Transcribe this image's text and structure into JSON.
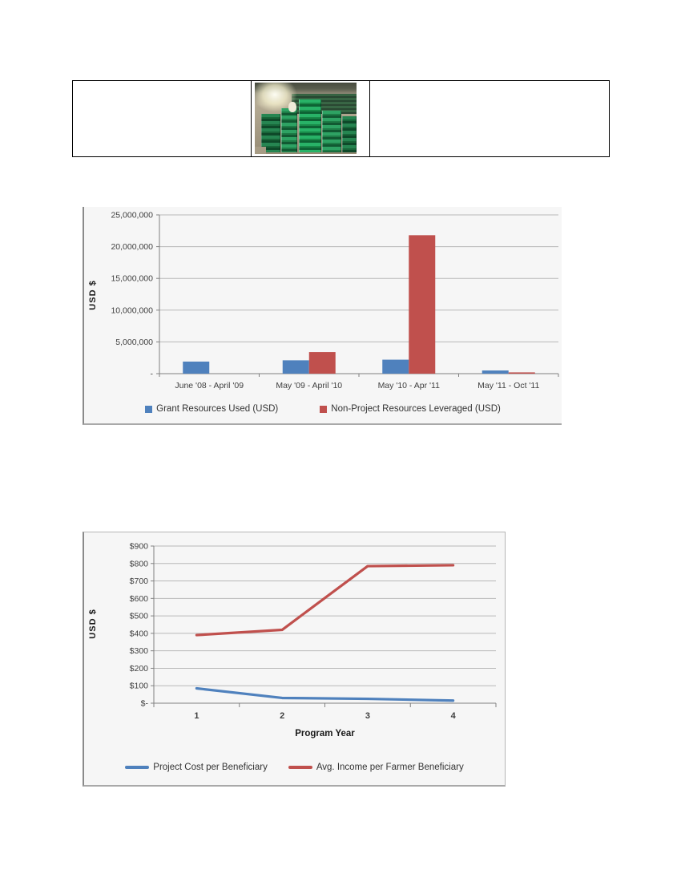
{
  "table": {
    "rows": 1,
    "columns": 3,
    "cell_texts": [
      "",
      "",
      ""
    ],
    "photo": {
      "name": "stacked-green-crates-warehouse-photo",
      "description_colors": {
        "crate_green": "#1d7c46",
        "wall": "#b5ab94",
        "ceiling": "#474b3e"
      }
    },
    "border_color": "#000000"
  },
  "chart_data": [
    {
      "type": "bar",
      "title": "",
      "xlabel": "",
      "ylabel": "USD $",
      "categories": [
        "June '08 - April '09",
        "May '09 - April '10",
        "May '10 - Apr '11",
        "May '11 - Oct '11"
      ],
      "series": [
        {
          "name": "Grant Resources Used (USD)",
          "color": "#4F81BD",
          "values": [
            1900000,
            2100000,
            2200000,
            500000
          ]
        },
        {
          "name": "Non-Project Resources Leveraged (USD)",
          "color": "#C0504D",
          "values": [
            0,
            3400000,
            21800000,
            200000
          ]
        }
      ],
      "ylim": [
        0,
        25000000
      ],
      "yticks": [
        "25,000,000",
        "20,000,000",
        "15,000,000",
        "10,000,000",
        "5,000,000",
        "-"
      ],
      "grid": true,
      "legend_position": "bottom",
      "gridline_color": "#b8b8b8",
      "axis_color": "#808080"
    },
    {
      "type": "line",
      "title": "",
      "xlabel": "Program Year",
      "ylabel": "USD $",
      "x": [
        1,
        2,
        3,
        4
      ],
      "series": [
        {
          "name": "Project Cost per Beneficiary",
          "color": "#4F81BD",
          "values": [
            85,
            30,
            25,
            15
          ]
        },
        {
          "name": "Avg. Income per Farmer Beneficiary",
          "color": "#C0504D",
          "values": [
            390,
            420,
            785,
            790
          ]
        }
      ],
      "ylim": [
        0,
        900
      ],
      "yticks": [
        "$900",
        "$800",
        "$700",
        "$600",
        "$500",
        "$400",
        "$300",
        "$200",
        "$100",
        "$-"
      ],
      "grid": true,
      "legend_position": "bottom",
      "gridline_color": "#b8b8b8",
      "axis_color": "#808080"
    }
  ]
}
